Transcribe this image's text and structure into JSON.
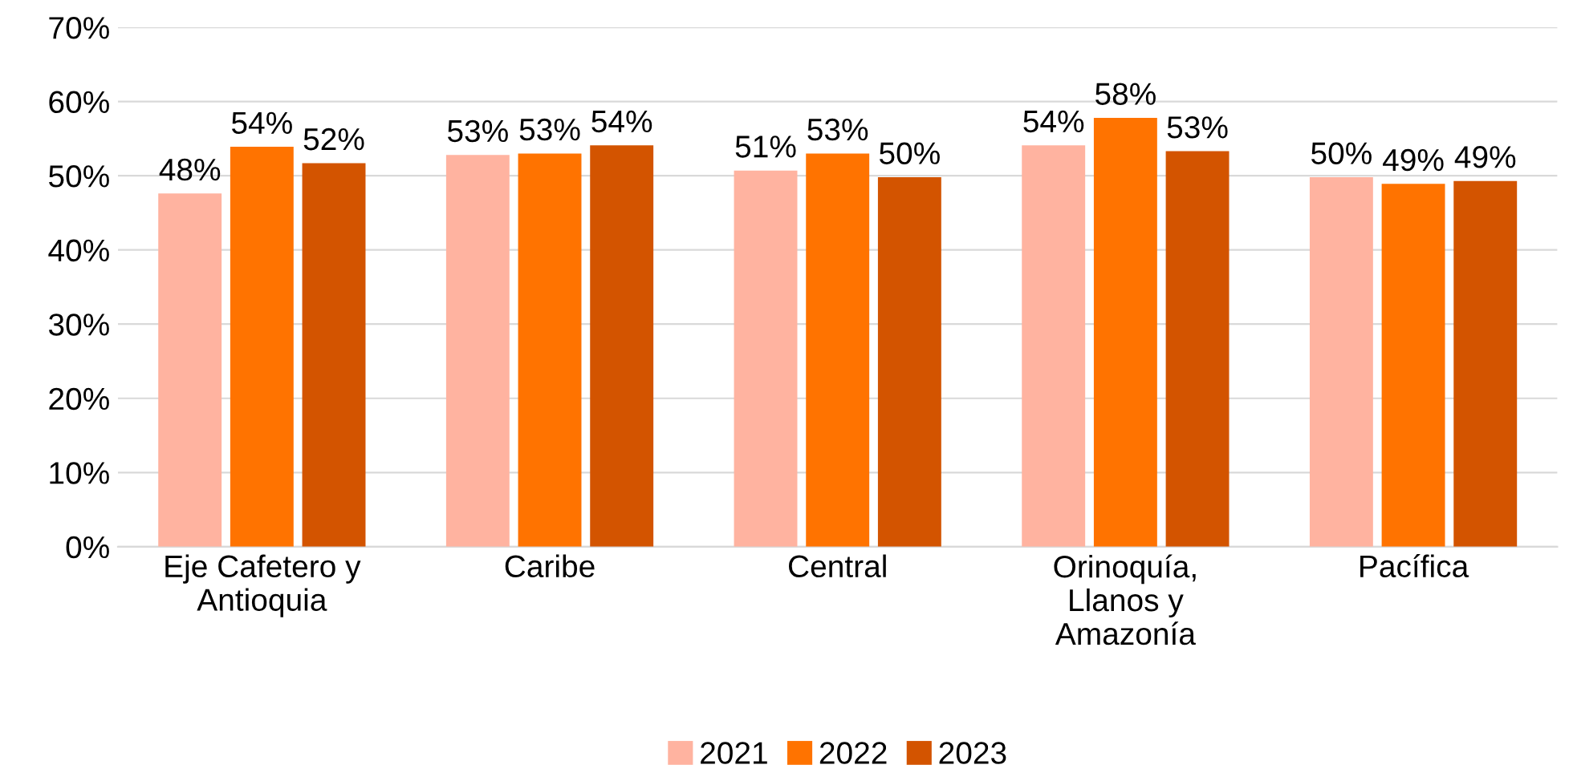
{
  "chart_data": {
    "type": "bar",
    "categories": [
      "Eje Cafetero y\nAntioquia",
      "Caribe",
      "Central",
      "Orinoquía,\nLlanos y\nAmazonía",
      "Pacífica"
    ],
    "series": [
      {
        "name": "2021",
        "color": "#ffb3a0",
        "values": [
          47.6,
          52.8,
          50.7,
          54.1,
          49.8
        ],
        "value_labels": [
          "48%",
          "53%",
          "51%",
          "54%",
          "50%"
        ]
      },
      {
        "name": "2022",
        "color": "#ff7300",
        "values": [
          53.9,
          53.0,
          53.0,
          57.8,
          48.9
        ],
        "value_labels": [
          "54%",
          "53%",
          "53%",
          "58%",
          "49%"
        ]
      },
      {
        "name": "2023",
        "color": "#d35400",
        "values": [
          51.7,
          54.1,
          49.8,
          53.3,
          49.3
        ],
        "value_labels": [
          "52%",
          "54%",
          "50%",
          "53%",
          "49%"
        ]
      }
    ],
    "ylim": [
      0,
      70
    ],
    "yticks": [
      {
        "value": 0,
        "label": "0%"
      },
      {
        "value": 10,
        "label": "10%"
      },
      {
        "value": 20,
        "label": "20%"
      },
      {
        "value": 30,
        "label": "30%"
      },
      {
        "value": 40,
        "label": "40%"
      },
      {
        "value": 50,
        "label": "50%"
      },
      {
        "value": 60,
        "label": "60%"
      },
      {
        "value": 70,
        "label": "70%"
      }
    ],
    "grid": "y",
    "legend": "bottom"
  }
}
